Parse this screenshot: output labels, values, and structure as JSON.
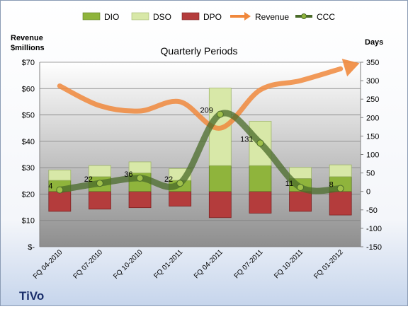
{
  "chart_data": {
    "type": "bar",
    "title": "Quarterly Periods",
    "company": "TiVo",
    "y_left_label_line1": "Revenue",
    "y_left_label_line2": "$millions",
    "y_right_label": "Days",
    "categories": [
      "FQ 04-2010",
      "FQ 07-2010",
      "FQ 10-2010",
      "FQ 01-2011",
      "FQ 04-2011",
      "FQ 07-2011",
      "FQ 10-2011",
      "FQ 01-2012"
    ],
    "ylim_left": [
      0,
      70
    ],
    "ylim_right": [
      -150,
      350
    ],
    "left_ticks": [
      "$-",
      "$10",
      "$20",
      "$30",
      "$40",
      "$50",
      "$60",
      "$70"
    ],
    "right_ticks": [
      "-150",
      "-100",
      "-50",
      "0",
      "50",
      "100",
      "150",
      "200",
      "250",
      "300",
      "350"
    ],
    "series": [
      {
        "name": "DIO",
        "axis": "right",
        "values": [
          30,
          40,
          50,
          30,
          70,
          70,
          35,
          40
        ]
      },
      {
        "name": "DSO",
        "axis": "right",
        "values": [
          28,
          30,
          30,
          32,
          210,
          120,
          30,
          32
        ]
      },
      {
        "name": "DPO",
        "axis": "right",
        "values": [
          -54,
          -48,
          -44,
          -40,
          -71,
          -59,
          -54,
          -64
        ]
      },
      {
        "name": "Revenue",
        "axis": "left",
        "values": [
          61,
          53.5,
          51.5,
          55,
          45,
          59.5,
          63,
          67.5
        ]
      },
      {
        "name": "CCC",
        "axis": "right",
        "values": [
          4,
          22,
          36,
          22,
          209,
          131,
          11,
          8
        ]
      }
    ],
    "ccc_labels": [
      "4",
      "22",
      "36",
      "22",
      "209",
      "131",
      "11",
      "8"
    ],
    "colors": {
      "DIO": "#8fb43c",
      "DSO": "#d8e8a8",
      "DPO": "#b43c3c",
      "Revenue": "#f0883c",
      "CCC": "#4a6b2a"
    },
    "grid": true,
    "legend_position": "top"
  }
}
